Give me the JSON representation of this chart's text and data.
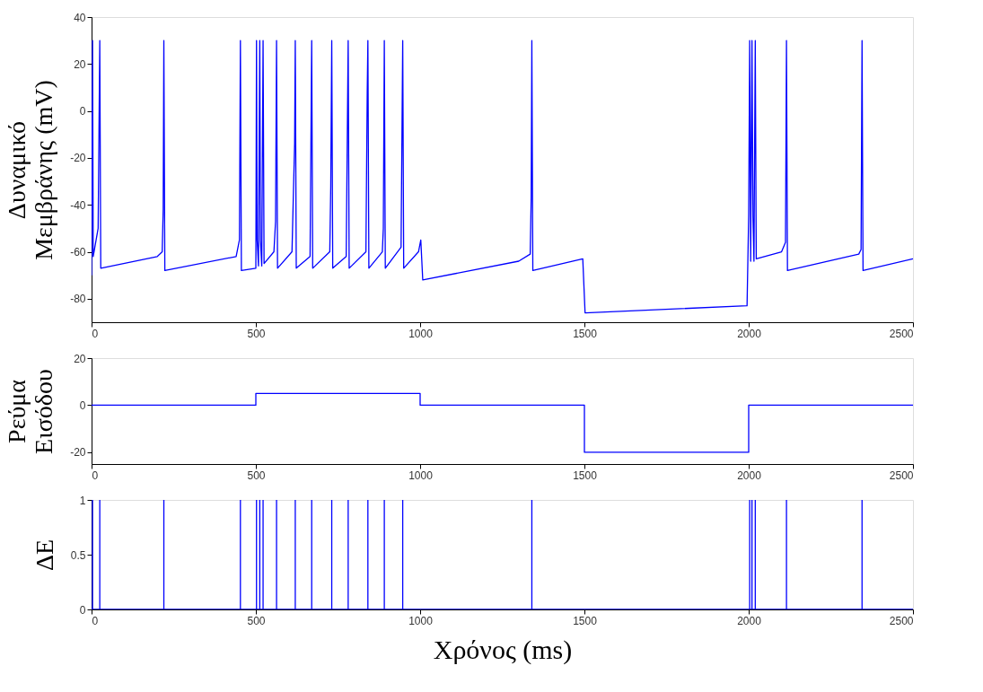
{
  "chart_data": [
    {
      "type": "line",
      "ylabel": "Δυναμικό\nΜεμβράνης (mV)",
      "xlim": [
        0,
        2500
      ],
      "xticks": [
        0,
        500,
        1000,
        1500,
        2000,
        2500
      ],
      "ylim": [
        -90,
        40
      ],
      "yticks": [
        -80,
        -60,
        -40,
        -20,
        0,
        20,
        40
      ],
      "grid": false,
      "line_style": "solid",
      "series": [
        {
          "color": "#0000ff",
          "x": [
            0,
            3,
            5,
            20,
            25,
            28,
            200,
            215,
            218,
            220,
            223,
            440,
            450,
            453,
            456,
            500,
            502,
            504,
            508,
            512,
            514,
            518,
            522,
            525,
            555,
            560,
            563,
            566,
            610,
            618,
            620,
            623,
            665,
            670,
            673,
            725,
            728,
            731,
            734,
            775,
            781,
            784,
            835,
            839,
            841,
            844,
            885,
            888,
            891,
            894,
            942,
            947,
            950,
            995,
            1002,
            1008,
            1300,
            1335,
            1338,
            1340,
            1343,
            1495,
            1502,
            1995,
            2000,
            2003,
            2006,
            2010,
            2013,
            2016,
            2020,
            2023,
            2100,
            2112,
            2115,
            2118,
            2335,
            2342,
            2345,
            2348,
            2500
          ],
          "values": [
            -70,
            30,
            -62,
            -50,
            30,
            -67,
            -62,
            -60,
            -42,
            30,
            -68,
            -62,
            -55,
            30,
            -68,
            -67,
            30,
            -55,
            -66,
            30,
            -55,
            -66,
            30,
            -65,
            -60,
            -47,
            30,
            -67,
            -60,
            -14,
            30,
            -67,
            -62,
            30,
            -67,
            -60,
            -32,
            30,
            -67,
            -62,
            30,
            -67,
            -60,
            8,
            30,
            -67,
            -60,
            -50,
            30,
            -67,
            -58,
            30,
            -67,
            -60,
            -55,
            -72,
            -64,
            -61,
            -37,
            30,
            -68,
            -63,
            -86,
            -83,
            -44,
            30,
            -64,
            30,
            -45,
            -64,
            30,
            -63,
            -60,
            -56,
            30,
            -68,
            -61,
            -59,
            30,
            -68,
            -63
          ]
        }
      ]
    },
    {
      "type": "step",
      "ylabel": "Ρεύμα\nΕισόδου",
      "xlim": [
        0,
        2500
      ],
      "xticks": [
        0,
        500,
        1000,
        1500,
        2000,
        2500
      ],
      "ylim": [
        -25,
        20
      ],
      "yticks": [
        -20,
        0,
        20
      ],
      "grid": false,
      "line_style": "solid",
      "series": [
        {
          "color": "#0000ff",
          "x": [
            0,
            500,
            1000,
            1500,
            2000,
            2500
          ],
          "values": [
            0,
            5,
            0,
            -20,
            0,
            0
          ]
        }
      ]
    },
    {
      "type": "line",
      "ylabel": "ΔE",
      "xlabel": "Χρόνος (ms)",
      "xlim": [
        0,
        2500
      ],
      "xticks": [
        0,
        500,
        1000,
        1500,
        2000,
        2500
      ],
      "ylim": [
        0,
        1
      ],
      "yticks": [
        0,
        0.5,
        1
      ],
      "grid": false,
      "line_style": "solid",
      "series": [
        {
          "color": "#0000ff",
          "x": [
            0,
            3,
            3,
            3,
            25,
            25,
            25,
            220,
            220,
            220,
            453,
            453,
            453,
            502,
            502,
            502,
            512,
            512,
            512,
            522,
            522,
            522,
            563,
            563,
            563,
            620,
            620,
            620,
            670,
            670,
            670,
            731,
            731,
            731,
            781,
            781,
            781,
            841,
            841,
            841,
            891,
            891,
            891,
            947,
            947,
            947,
            1340,
            1340,
            1340,
            2003,
            2003,
            2003,
            2010,
            2010,
            2010,
            2020,
            2020,
            2020,
            2115,
            2115,
            2115,
            2345,
            2345,
            2345,
            2500
          ],
          "values": [
            0,
            0,
            1,
            0,
            0,
            1,
            0,
            0,
            1,
            0,
            0,
            1,
            0,
            0,
            1,
            0,
            0,
            1,
            0,
            0,
            1,
            0,
            0,
            1,
            0,
            0,
            1,
            0,
            0,
            1,
            0,
            0,
            1,
            0,
            0,
            1,
            0,
            0,
            1,
            0,
            0,
            1,
            0,
            0,
            1,
            0,
            0,
            1,
            0,
            0,
            1,
            0,
            0,
            1,
            0,
            0,
            1,
            0,
            0,
            1,
            0,
            0,
            1,
            0,
            0
          ]
        }
      ]
    }
  ]
}
